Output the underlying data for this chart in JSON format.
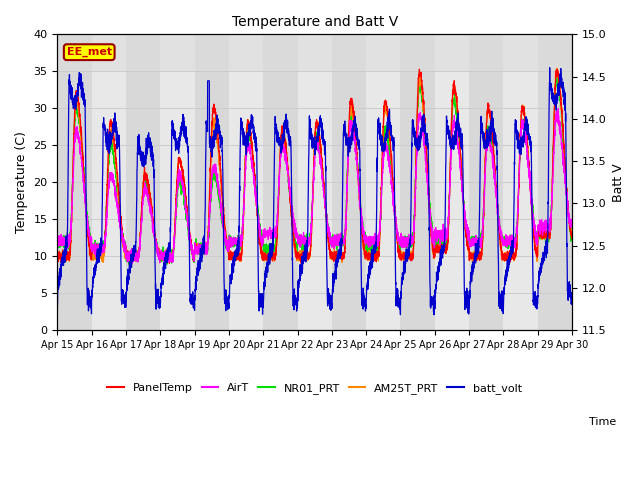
{
  "title": "Temperature and Batt V",
  "xlabel": "Time",
  "ylabel_left": "Temperature (C)",
  "ylabel_right": "Batt V",
  "ylim_left": [
    0,
    40
  ],
  "ylim_right": [
    11.5,
    15.0
  ],
  "annotation_text": "EE_met",
  "annotation_box_color": "#FFFF00",
  "annotation_text_color": "#CC0000",
  "annotation_border_color": "#990000",
  "background_color": "#E8E8E8",
  "strip_color": "#F0F0F0",
  "grid_color": "#CCCCCC",
  "colors": {
    "PanelTemp": "#FF0000",
    "AirT": "#FF00FF",
    "NR01_PRT": "#00DD00",
    "AM25T_PRT": "#FF8800",
    "batt_volt": "#0000CC"
  },
  "xtick_labels": [
    "Apr 15",
    "Apr 16",
    "Apr 17",
    "Apr 18",
    "Apr 19",
    "Apr 20",
    "Apr 21",
    "Apr 22",
    "Apr 23",
    "Apr 24",
    "Apr 25",
    "Apr 26",
    "Apr 27",
    "Apr 28",
    "Apr 29",
    "Apr 30"
  ],
  "legend_labels": [
    "PanelTemp",
    "AirT",
    "NR01_PRT",
    "AM25T_PRT",
    "batt_volt"
  ]
}
